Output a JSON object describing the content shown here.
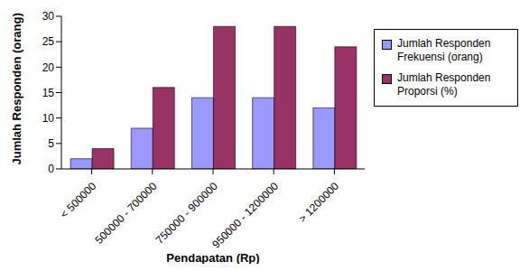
{
  "chart_data": {
    "type": "bar",
    "categories": [
      "< 500000",
      "500000 - 700000",
      "750000 - 900000",
      "950000 - 1200000",
      "> 1200000"
    ],
    "series": [
      {
        "name": "Jumlah Responden Frekuensi (orang)",
        "color": "#9999ff",
        "values": [
          2,
          8,
          14,
          14,
          12
        ]
      },
      {
        "name": "Jumlah Responden Proporsi (%)",
        "color": "#993366",
        "values": [
          4,
          16,
          28,
          28,
          24
        ]
      }
    ],
    "x_label": "Pendapatan (Rp)",
    "y_label": "Jumlah Responden (orang)",
    "ylim": [
      0,
      30
    ],
    "yticks": [
      0,
      5,
      10,
      15,
      20,
      25,
      30
    ],
    "grid": false,
    "legend": "right"
  }
}
